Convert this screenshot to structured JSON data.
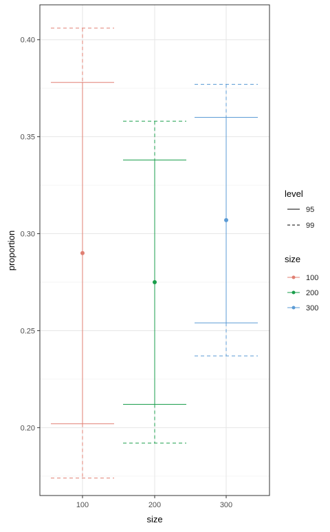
{
  "chart_data": {
    "type": "errorbar",
    "title": "",
    "xlabel": "size",
    "ylabel": "proportion",
    "categories": [
      "100",
      "200",
      "300"
    ],
    "ylim": [
      0.165,
      0.418
    ],
    "yticks": [
      0.2,
      0.25,
      0.3,
      0.35,
      0.4
    ],
    "ytick_labels": [
      "0.20",
      "0.25",
      "0.30",
      "0.35",
      "0.40"
    ],
    "grid": true,
    "series": [
      {
        "name": "100",
        "color": "#e07f72",
        "point": 0.29,
        "ci95": [
          0.202,
          0.378
        ],
        "ci99": [
          0.174,
          0.406
        ]
      },
      {
        "name": "200",
        "color": "#1a9e4b",
        "point": 0.275,
        "ci95": [
          0.212,
          0.338
        ],
        "ci99": [
          0.192,
          0.358
        ]
      },
      {
        "name": "300",
        "color": "#5b9bd5",
        "point": 0.307,
        "ci95": [
          0.254,
          0.36
        ],
        "ci99": [
          0.237,
          0.377
        ]
      }
    ],
    "legend": {
      "placement": "right",
      "level": {
        "title": "level",
        "items": [
          {
            "label": "95",
            "linetype": "solid"
          },
          {
            "label": "99",
            "linetype": "dashed"
          }
        ]
      },
      "size": {
        "title": "size",
        "items": [
          {
            "label": "100",
            "color": "#e07f72"
          },
          {
            "label": "200",
            "color": "#1a9e4b"
          },
          {
            "label": "300",
            "color": "#5b9bd5"
          }
        ]
      }
    }
  }
}
